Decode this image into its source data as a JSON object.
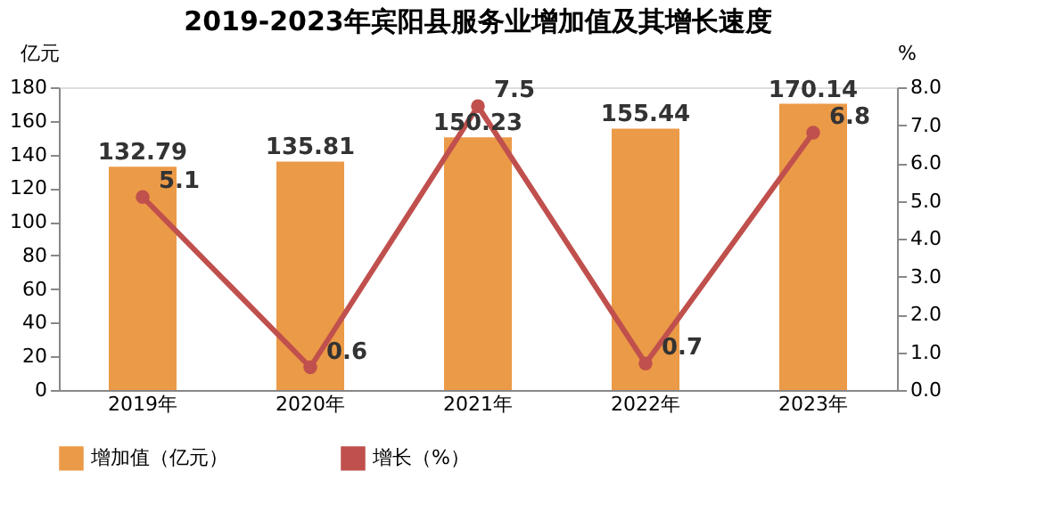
{
  "chart_data": {
    "type": "bar",
    "title": "2019-2023年宾阳县服务业增加值及其增长速度",
    "categories": [
      "2019年",
      "2020年",
      "2021年",
      "2022年",
      "2023年"
    ],
    "series": [
      {
        "name": "增加值（亿元）",
        "color": "#eb9a47",
        "values": [
          132.79,
          135.81,
          150.23,
          155.44,
          170.14
        ]
      },
      {
        "name": "增长（%）",
        "type": "line",
        "axis": "y2",
        "color": "#c0504d",
        "marker": "circle",
        "values": [
          5.1,
          0.6,
          7.5,
          0.7,
          6.8
        ]
      }
    ],
    "ylabel": "亿元",
    "y2label": "%",
    "ylim": [
      0,
      180
    ],
    "yticks": [
      0,
      20,
      40,
      60,
      80,
      100,
      120,
      140,
      160,
      180
    ],
    "y2lim": [
      0,
      8
    ],
    "y2ticks": [
      {
        "value": 0,
        "label": "0.0"
      },
      {
        "value": 1,
        "label": "1.0"
      },
      {
        "value": 2,
        "label": "2.0"
      },
      {
        "value": 3,
        "label": "3.0"
      },
      {
        "value": 4,
        "label": "4.0"
      },
      {
        "value": 5,
        "label": "5.0"
      },
      {
        "value": 6,
        "label": "6.0"
      },
      {
        "value": 7,
        "label": "7.0"
      },
      {
        "value": 8,
        "label": "8.0"
      }
    ],
    "data_labels": true,
    "legend": "bottom",
    "grid": false
  }
}
